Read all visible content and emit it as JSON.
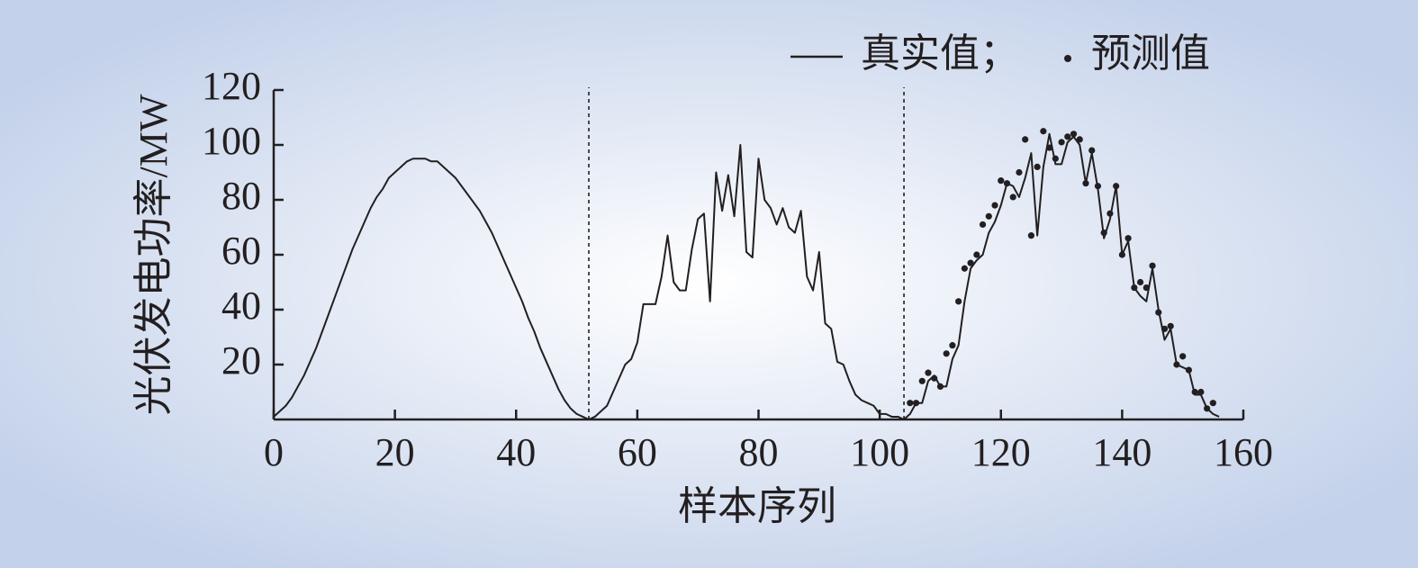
{
  "chart_data": {
    "type": "line",
    "xlabel": "样本序列",
    "ylabel": "光伏发电功率/MW",
    "xlim": [
      0,
      160
    ],
    "xticks": [
      0,
      20,
      40,
      60,
      80,
      100,
      120,
      140,
      160
    ],
    "ylim": [
      0,
      120
    ],
    "yticks": [
      20,
      40,
      60,
      80,
      100,
      120
    ],
    "dividers": [
      52,
      104
    ],
    "series": [
      {
        "name": "真实值；",
        "color": "#231f20",
        "style": "line",
        "x": [
          0,
          1,
          2,
          3,
          4,
          5,
          6,
          7,
          8,
          9,
          10,
          11,
          12,
          13,
          14,
          15,
          16,
          17,
          18,
          19,
          20,
          21,
          22,
          23,
          24,
          25,
          26,
          27,
          28,
          29,
          30,
          31,
          32,
          33,
          34,
          35,
          36,
          37,
          38,
          39,
          40,
          41,
          42,
          43,
          44,
          45,
          46,
          47,
          48,
          49,
          50,
          51,
          52,
          53,
          54,
          55,
          56,
          57,
          58,
          59,
          60,
          61,
          62,
          63,
          64,
          65,
          66,
          67,
          68,
          69,
          70,
          71,
          72,
          73,
          74,
          75,
          76,
          77,
          78,
          79,
          80,
          81,
          82,
          83,
          84,
          85,
          86,
          87,
          88,
          89,
          90,
          91,
          92,
          93,
          94,
          95,
          96,
          97,
          98,
          99,
          100,
          101,
          102,
          103,
          104,
          105,
          106,
          107,
          108,
          109,
          110,
          111,
          112,
          113,
          114,
          115,
          116,
          117,
          118,
          119,
          120,
          121,
          122,
          123,
          124,
          125,
          126,
          127,
          128,
          129,
          130,
          131,
          132,
          133,
          134,
          135,
          136,
          137,
          138,
          139,
          140,
          141,
          142,
          143,
          144,
          145,
          146,
          147,
          148,
          149,
          150,
          151,
          152,
          153,
          154,
          155,
          156
        ],
        "values": [
          1,
          3,
          5,
          8,
          12,
          16,
          21,
          26,
          32,
          38,
          44,
          50,
          56,
          62,
          67,
          72,
          77,
          81,
          84,
          88,
          90,
          92,
          94,
          95,
          95,
          95,
          94,
          94,
          92,
          90,
          88,
          85,
          82,
          79,
          76,
          72,
          68,
          63,
          58,
          53,
          48,
          43,
          37,
          32,
          26,
          21,
          16,
          11,
          7,
          4,
          2,
          1,
          0,
          1,
          3,
          5,
          10,
          15,
          20,
          22,
          28,
          42,
          42,
          42,
          52,
          67,
          50,
          47,
          47,
          62,
          73,
          75,
          43,
          90,
          76,
          89,
          74,
          100,
          61,
          59,
          95,
          80,
          77,
          71,
          77,
          70,
          68,
          76,
          52,
          47,
          61,
          35,
          33,
          21,
          20,
          14,
          9,
          7,
          6,
          5,
          2,
          2,
          1,
          1,
          0,
          2,
          6,
          6,
          14,
          16,
          12,
          12,
          22,
          27,
          43,
          55,
          58,
          60,
          68,
          72,
          78,
          86,
          85,
          81,
          88,
          97,
          67,
          92,
          104,
          93,
          93,
          101,
          103,
          100,
          86,
          97,
          84,
          66,
          73,
          85,
          60,
          65,
          48,
          45,
          43,
          55,
          40,
          29,
          33,
          20,
          19,
          18,
          9,
          9,
          4,
          2,
          1
        ]
      },
      {
        "name": "预测值",
        "color": "#231f20",
        "style": "dots",
        "x": [
          105,
          106,
          107,
          108,
          109,
          110,
          111,
          112,
          113,
          114,
          115,
          116,
          117,
          118,
          119,
          120,
          121,
          122,
          123,
          124,
          125,
          126,
          127,
          128,
          129,
          130,
          131,
          132,
          133,
          134,
          135,
          136,
          137,
          138,
          139,
          140,
          141,
          142,
          143,
          144,
          145,
          146,
          147,
          148,
          149,
          150,
          151,
          152,
          153,
          154,
          155
        ],
        "values": [
          6,
          6,
          14,
          17,
          15,
          12,
          24,
          27,
          43,
          55,
          57,
          60,
          71,
          74,
          78,
          87,
          86,
          81,
          90,
          102,
          67,
          92,
          105,
          99,
          95,
          101,
          103,
          104,
          102,
          86,
          98,
          85,
          68,
          75,
          85,
          60,
          66,
          48,
          50,
          48,
          56,
          39,
          33,
          34,
          20,
          23,
          18,
          10,
          10,
          4,
          6
        ]
      }
    ]
  }
}
